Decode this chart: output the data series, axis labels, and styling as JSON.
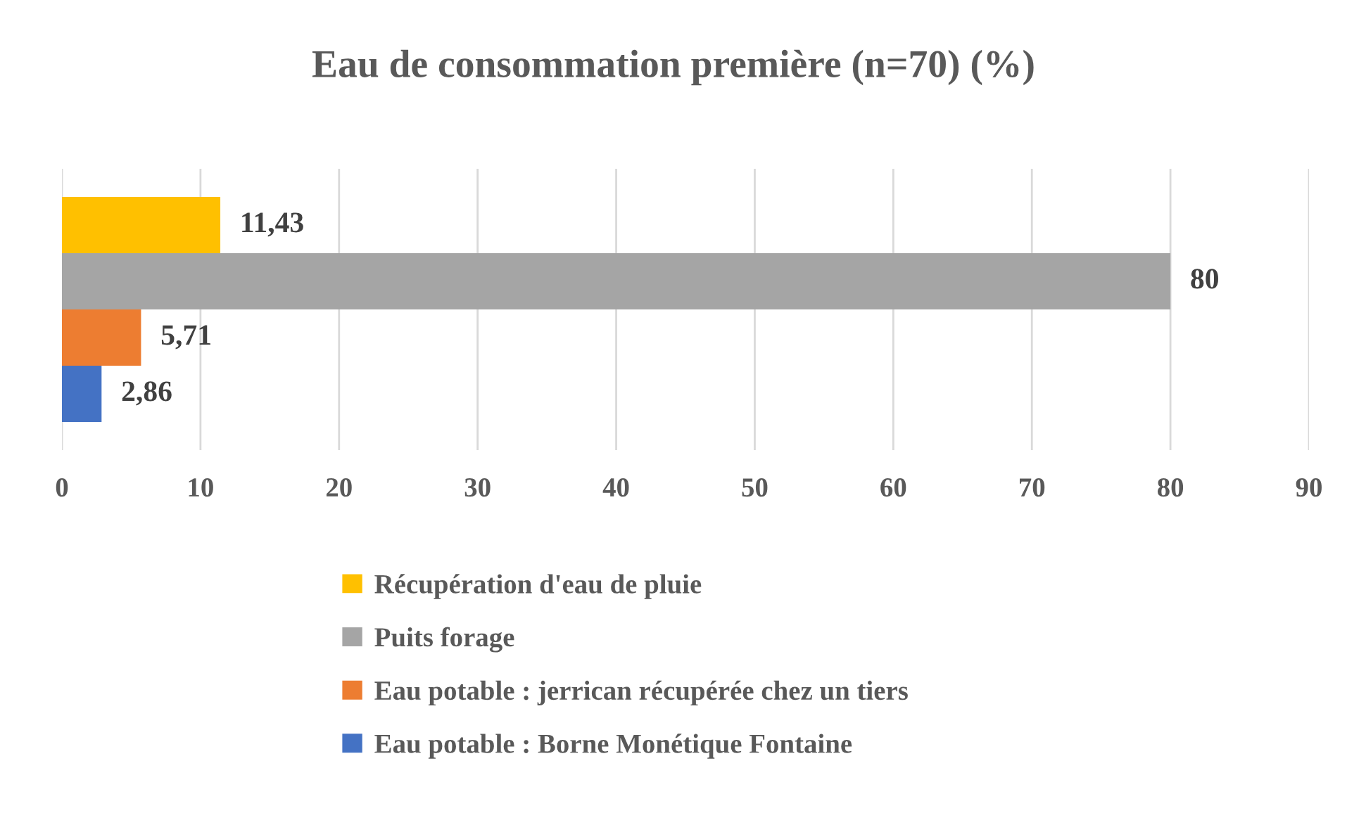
{
  "chart_data": {
    "type": "bar",
    "orientation": "horizontal",
    "title": "Eau de consommation première (n=70) (%)",
    "categories": [
      null
    ],
    "series": [
      {
        "name": "Récupération d'eau de pluie",
        "color": "#ffc000",
        "values": [
          11.43
        ],
        "value_labels": [
          "11,43"
        ]
      },
      {
        "name": "Puits forage",
        "color": "#a5a5a5",
        "values": [
          80
        ],
        "value_labels": [
          "80"
        ]
      },
      {
        "name": "Eau potable : jerrican récupérée chez un tiers",
        "color": "#ed7d31",
        "values": [
          5.71
        ],
        "value_labels": [
          "5,71"
        ]
      },
      {
        "name": "Eau potable : Borne Monétique Fontaine",
        "color": "#4472c4",
        "values": [
          2.86
        ],
        "value_labels": [
          "2,86"
        ]
      }
    ],
    "xlim": [
      0,
      90
    ],
    "xticks": [
      0,
      10,
      20,
      30,
      40,
      50,
      60,
      70,
      80,
      90
    ],
    "grid": "x",
    "legend": "bottom"
  }
}
